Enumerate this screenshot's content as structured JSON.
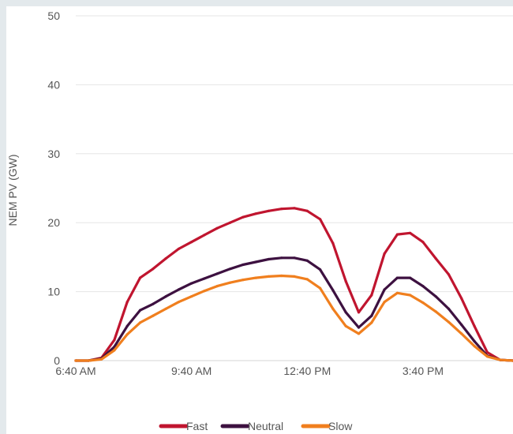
{
  "chart_data": {
    "type": "line",
    "title": "",
    "xlabel": "",
    "ylabel": "NEM PV (GW)",
    "xlim": [
      "6:40 AM",
      "6:00 PM"
    ],
    "ylim": [
      0,
      50
    ],
    "y_ticks": [
      0,
      10,
      20,
      30,
      40,
      50
    ],
    "x_ticks": [
      "6:40 AM",
      "9:40 AM",
      "12:40 PM",
      "3:40 PM"
    ],
    "grid": "horizontal",
    "legend_position": "bottom",
    "x": [
      "6:40 AM",
      "7:00 AM",
      "7:20 AM",
      "7:40 AM",
      "8:00 AM",
      "8:20 AM",
      "8:40 AM",
      "9:00 AM",
      "9:20 AM",
      "9:40 AM",
      "10:00 AM",
      "10:20 AM",
      "10:40 AM",
      "11:00 AM",
      "11:20 AM",
      "11:40 AM",
      "12:00 PM",
      "12:20 PM",
      "12:40 PM",
      "1:00 PM",
      "1:20 PM",
      "1:40 PM",
      "2:00 PM",
      "2:20 PM",
      "2:40 PM",
      "3:00 PM",
      "3:20 PM",
      "3:40 PM",
      "4:00 PM",
      "4:20 PM",
      "4:40 PM",
      "5:00 PM",
      "5:20 PM",
      "5:40 PM",
      "6:00 PM"
    ],
    "series": [
      {
        "name": "Fast",
        "color": "#c0152f",
        "values": [
          0,
          0,
          0.4,
          3,
          8.5,
          12,
          13.3,
          14.8,
          16.2,
          17.2,
          18.2,
          19.2,
          20,
          20.8,
          21.3,
          21.7,
          22,
          22.1,
          21.7,
          20.5,
          17,
          11.5,
          7,
          9.5,
          15.5,
          18.3,
          18.5,
          17.2,
          14.8,
          12.5,
          9,
          5,
          1.2,
          0.1,
          0
        ]
      },
      {
        "name": "Neutral",
        "color": "#3d1140",
        "values": [
          0,
          0,
          0.3,
          2,
          5,
          7.3,
          8.2,
          9.3,
          10.3,
          11.2,
          11.9,
          12.6,
          13.3,
          13.9,
          14.3,
          14.7,
          14.9,
          14.9,
          14.5,
          13.2,
          10.2,
          7,
          4.8,
          6.5,
          10.3,
          12,
          12,
          10.8,
          9.3,
          7.5,
          5.2,
          2.8,
          0.7,
          0.1,
          0
        ]
      },
      {
        "name": "Slow",
        "color": "#f07f1e",
        "values": [
          0,
          0,
          0.2,
          1.5,
          3.8,
          5.5,
          6.5,
          7.5,
          8.5,
          9.3,
          10.1,
          10.8,
          11.3,
          11.7,
          12,
          12.2,
          12.3,
          12.2,
          11.8,
          10.5,
          7.5,
          5,
          3.9,
          5.5,
          8.5,
          9.8,
          9.5,
          8.4,
          7.1,
          5.6,
          3.9,
          2.1,
          0.6,
          0.1,
          0
        ]
      }
    ]
  }
}
